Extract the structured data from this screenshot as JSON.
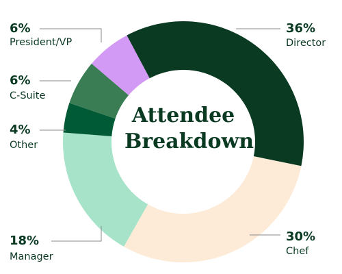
{
  "chart_data": {
    "type": "donut",
    "title": "Attendee Breakdown",
    "categories": [
      "Director",
      "Chef",
      "Manager",
      "Other",
      "C-Suite",
      "President/VP"
    ],
    "values": [
      36,
      30,
      18,
      4,
      6,
      6
    ],
    "value_labels": [
      "36%",
      "30%",
      "18%",
      "4%",
      "6%",
      "6%"
    ],
    "colors": [
      "#0b3a23",
      "#fdebd8",
      "#a6e3c8",
      "#005a35",
      "#3a7d55",
      "#d39af5"
    ]
  }
}
